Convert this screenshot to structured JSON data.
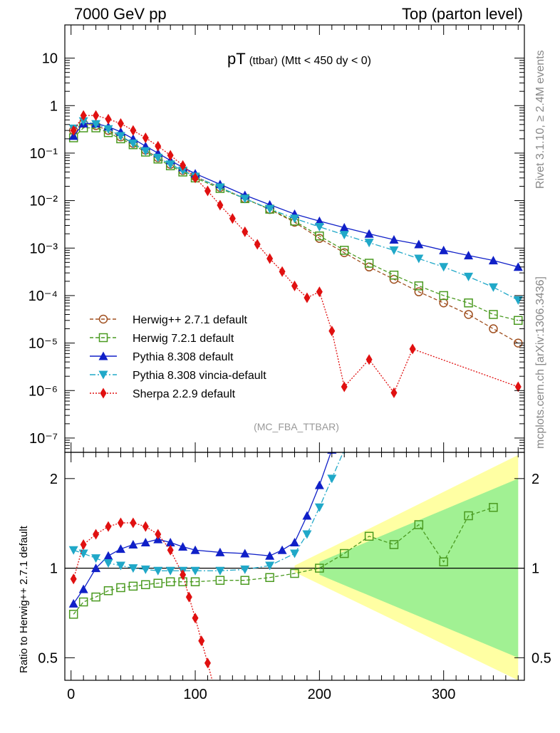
{
  "header": {
    "left": "7000 GeV pp",
    "right": "Top (parton level)"
  },
  "side_labels": {
    "right_top": "Rivet 3.1.10, ≥ 2.4M events",
    "right_bottom": "mcplots.cern.ch [arXiv:1306.3436]"
  },
  "chart_data": [
    {
      "type": "line",
      "panel": "main",
      "title": "pT",
      "title_small": "(ttbar)",
      "title_suffix": "(Mtt < 450 dy < 0)",
      "analysis_tag": "(MC_FBA_TTBAR)",
      "xlim": [
        -5,
        365
      ],
      "ylim": [
        5e-08,
        50
      ],
      "yscale": "log",
      "ytick_labels": [
        "10",
        "1",
        "10⁻¹",
        "10⁻²",
        "10⁻³",
        "10⁻⁴",
        "10⁻⁵",
        "10⁻⁶",
        "10⁻⁷"
      ],
      "legend_position": "bottom-left",
      "series": [
        {
          "name": "Herwig++ 2.7.1 default",
          "color": "#a05020",
          "marker": "circle-open",
          "x": [
            2,
            10,
            20,
            30,
            40,
            50,
            60,
            70,
            80,
            90,
            100,
            120,
            140,
            160,
            180,
            200,
            220,
            240,
            260,
            280,
            300,
            320,
            340,
            360
          ],
          "y": [
            0.3,
            0.42,
            0.38,
            0.3,
            0.22,
            0.16,
            0.115,
            0.08,
            0.058,
            0.043,
            0.032,
            0.019,
            0.011,
            0.0065,
            0.0035,
            0.0016,
            0.0008,
            0.0004,
            0.00022,
            0.00012,
            7e-05,
            4e-05,
            2e-05,
            1e-05
          ]
        },
        {
          "name": "Herwig 7.2.1 default",
          "color": "#4a9a20",
          "marker": "square-open",
          "x": [
            2,
            10,
            20,
            30,
            40,
            50,
            60,
            70,
            80,
            90,
            100,
            120,
            140,
            160,
            180,
            200,
            220,
            240,
            260,
            280,
            300,
            320,
            340,
            360
          ],
          "y": [
            0.21,
            0.34,
            0.34,
            0.27,
            0.2,
            0.15,
            0.105,
            0.075,
            0.054,
            0.04,
            0.03,
            0.018,
            0.011,
            0.0066,
            0.0037,
            0.0018,
            0.0009,
            0.00048,
            0.00027,
            0.00016,
            0.0001,
            7e-05,
            4e-05,
            3e-05
          ]
        },
        {
          "name": "Pythia 8.308 default",
          "color": "#1020c8",
          "marker": "triangle-up",
          "x": [
            2,
            10,
            20,
            30,
            40,
            50,
            60,
            70,
            80,
            90,
            100,
            120,
            140,
            160,
            180,
            200,
            220,
            240,
            260,
            280,
            300,
            320,
            340,
            360
          ],
          "y": [
            0.23,
            0.42,
            0.42,
            0.36,
            0.28,
            0.2,
            0.14,
            0.1,
            0.07,
            0.05,
            0.037,
            0.022,
            0.013,
            0.0082,
            0.0052,
            0.0037,
            0.0027,
            0.002,
            0.0015,
            0.0012,
            0.0009,
            0.0007,
            0.00055,
            0.0004
          ]
        },
        {
          "name": "Pythia 8.308 vincia-default",
          "color": "#20a8c8",
          "marker": "triangle-down",
          "x": [
            2,
            10,
            20,
            30,
            40,
            50,
            60,
            70,
            80,
            90,
            100,
            120,
            140,
            160,
            180,
            200,
            220,
            240,
            260,
            280,
            300,
            320,
            340,
            360
          ],
          "y": [
            0.33,
            0.47,
            0.41,
            0.32,
            0.23,
            0.16,
            0.11,
            0.08,
            0.058,
            0.043,
            0.032,
            0.019,
            0.011,
            0.0067,
            0.0042,
            0.0028,
            0.0019,
            0.0013,
            0.0009,
            0.0006,
            0.0004,
            0.00025,
            0.00015,
            8e-05
          ]
        },
        {
          "name": "Sherpa 2.2.9 default",
          "color": "#e01010",
          "marker": "diamond",
          "x": [
            2,
            10,
            20,
            30,
            40,
            50,
            60,
            70,
            80,
            90,
            100,
            110,
            120,
            130,
            140,
            150,
            160,
            170,
            180,
            190,
            200,
            210,
            220,
            240,
            260,
            275,
            360
          ],
          "y": [
            0.3,
            0.62,
            0.62,
            0.52,
            0.42,
            0.3,
            0.21,
            0.14,
            0.09,
            0.055,
            0.03,
            0.016,
            0.008,
            0.0042,
            0.0022,
            0.0012,
            0.0006,
            0.00032,
            0.00016,
            9e-05,
            0.00012,
            1.8e-05,
            1.2e-06,
            4.5e-06,
            9e-07,
            7.5e-06,
            1.2e-06
          ]
        }
      ]
    },
    {
      "type": "line",
      "panel": "ratio",
      "ylabel": "Ratio to Herwig++ 2.7.1 default",
      "xlim": [
        -5,
        365
      ],
      "ylim": [
        0.42,
        2.45
      ],
      "yscale": "log",
      "xticks": [
        0,
        100,
        200,
        300
      ],
      "yticks": [
        0.5,
        1,
        2
      ],
      "reference_line": 1,
      "series": [
        {
          "name": "Herwig 7.2.1 default",
          "color": "#4a9a20",
          "x": [
            2,
            10,
            20,
            30,
            40,
            50,
            60,
            70,
            80,
            90,
            100,
            120,
            140,
            160,
            180,
            200,
            220,
            240,
            260,
            280,
            300,
            320,
            340
          ],
          "y": [
            0.7,
            0.77,
            0.8,
            0.84,
            0.86,
            0.87,
            0.88,
            0.89,
            0.9,
            0.9,
            0.9,
            0.91,
            0.91,
            0.93,
            0.96,
            1.0,
            1.12,
            1.28,
            1.2,
            1.4,
            1.05,
            1.5,
            1.6
          ]
        },
        {
          "name": "Pythia 8.308 default",
          "color": "#1020c8",
          "x": [
            2,
            10,
            20,
            30,
            40,
            50,
            60,
            70,
            80,
            90,
            100,
            120,
            140,
            160,
            170,
            180,
            190,
            200,
            210
          ],
          "y": [
            0.76,
            0.85,
            1.0,
            1.1,
            1.16,
            1.2,
            1.22,
            1.25,
            1.22,
            1.18,
            1.15,
            1.13,
            1.12,
            1.1,
            1.15,
            1.22,
            1.5,
            1.9,
            2.5
          ]
        },
        {
          "name": "Pythia 8.308 vincia-default",
          "color": "#20a8c8",
          "x": [
            2,
            10,
            20,
            30,
            40,
            50,
            60,
            70,
            80,
            90,
            100,
            120,
            140,
            160,
            180,
            190,
            200,
            210,
            220
          ],
          "y": [
            1.15,
            1.12,
            1.08,
            1.04,
            1.02,
            1.0,
            0.99,
            0.98,
            0.98,
            0.98,
            0.98,
            0.98,
            0.99,
            1.02,
            1.12,
            1.3,
            1.6,
            2.0,
            2.5
          ]
        },
        {
          "name": "Sherpa 2.2.9 default",
          "color": "#e01010",
          "x": [
            2,
            10,
            20,
            30,
            40,
            50,
            60,
            70,
            80,
            90,
            95,
            100,
            105,
            110,
            115
          ],
          "y": [
            0.92,
            1.2,
            1.3,
            1.38,
            1.42,
            1.42,
            1.38,
            1.3,
            1.15,
            0.95,
            0.8,
            0.68,
            0.57,
            0.48,
            0.4
          ]
        }
      ]
    }
  ]
}
